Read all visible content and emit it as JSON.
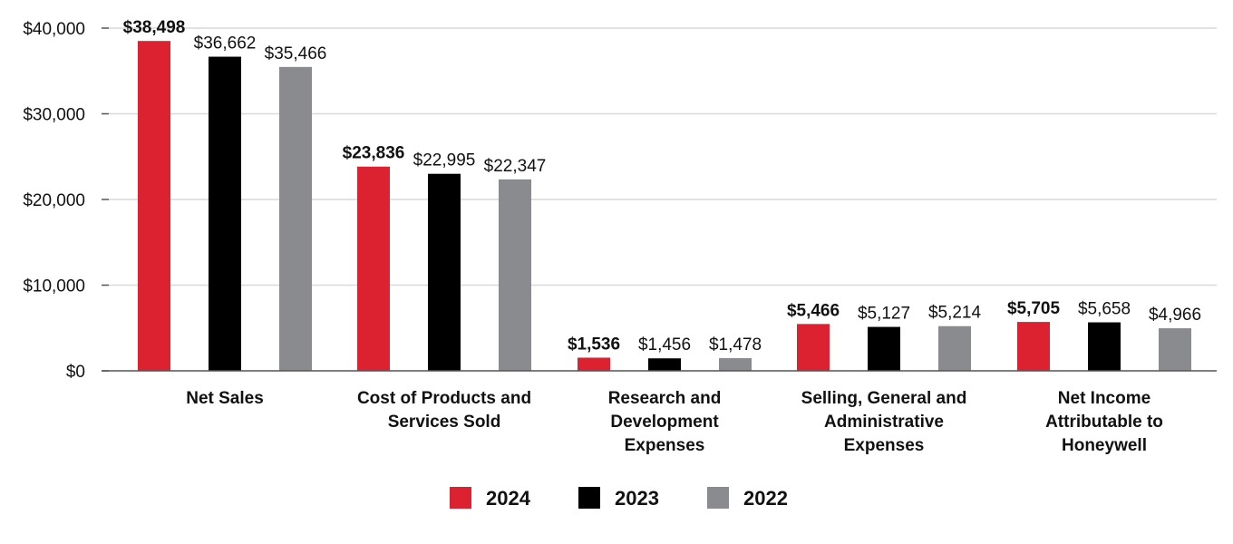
{
  "chart_data": {
    "type": "bar",
    "title": "",
    "xlabel": "",
    "ylabel": "",
    "ylim": [
      0,
      40000
    ],
    "yticks": [
      0,
      10000,
      20000,
      30000,
      40000
    ],
    "ytick_labels": [
      "$0",
      "$10,000",
      "$20,000",
      "$30,000",
      "$40,000"
    ],
    "grid": true,
    "legend_position": "bottom",
    "categories": [
      [
        "Net Sales"
      ],
      [
        "Cost of Products and",
        "Services Sold"
      ],
      [
        "Research and",
        "Development",
        "Expenses"
      ],
      [
        "Selling, General and",
        "Administrative",
        "Expenses"
      ],
      [
        "Net Income",
        "Attributable to",
        "Honeywell"
      ]
    ],
    "series": [
      {
        "name": "2024",
        "color": "#dc2130",
        "bold_labels": true,
        "values": [
          38498,
          23836,
          1536,
          5466,
          5705
        ],
        "labels": [
          "$38,498",
          "$23,836",
          "$1,536",
          "$5,466",
          "$5,705"
        ]
      },
      {
        "name": "2023",
        "color": "#000000",
        "bold_labels": false,
        "values": [
          36662,
          22995,
          1456,
          5127,
          5658
        ],
        "labels": [
          "$36,662",
          "$22,995",
          "$1,456",
          "$5,127",
          "$5,658"
        ]
      },
      {
        "name": "2022",
        "color": "#898b8e",
        "bold_labels": false,
        "values": [
          35466,
          22347,
          1478,
          5214,
          4966
        ],
        "labels": [
          "$35,466",
          "$22,347",
          "$1,478",
          "$5,214",
          "$4,966"
        ]
      }
    ]
  }
}
